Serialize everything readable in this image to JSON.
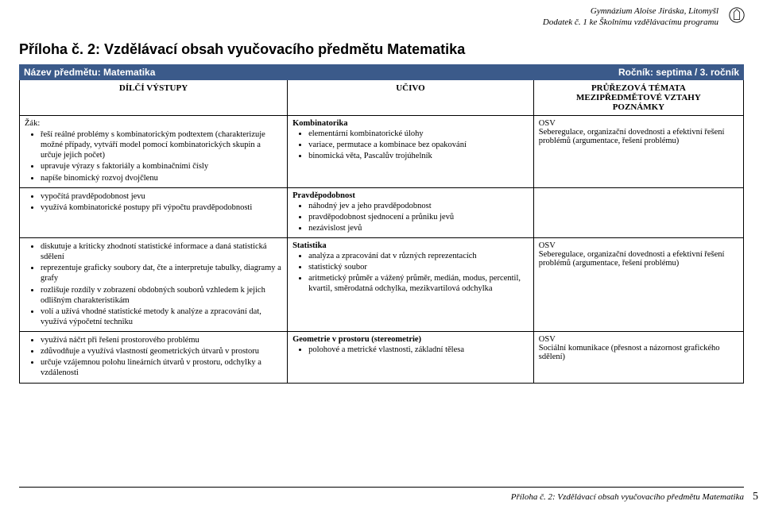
{
  "header": {
    "line1": "Gymnázium Aloise Jiráska, Litomyšl",
    "line2": "Dodatek č. 1 ke Školnímu vzdělávacímu programu"
  },
  "title": "Příloha č. 2: Vzdělávací obsah vyučovacího předmětu Matematika",
  "band": {
    "subject": "Název předmětu: Matematika",
    "grade": "Ročník: septima / 3. ročník"
  },
  "cols": {
    "c1": "DÍLČÍ VÝSTUPY",
    "c2": "UČIVO",
    "c3": "PRŮŘEZOVÁ TÉMATA\nMEZIPŘEDMĚTOVÉ VZTAHY\nPOZNÁMKY"
  },
  "zak": "Žák:",
  "rows": [
    {
      "outputs": [
        "řeší reálné problémy s kombinatorickým podtextem (charakterizuje možné případy, vytváří model pomocí kombinatorických skupin a určuje jejich počet)",
        "upravuje výrazy s faktoriály a kombinačními čísly",
        "napíše binomický rozvoj dvojčlenu"
      ],
      "topic": "Kombinatorika",
      "content": [
        "elementární kombinatorické úlohy",
        "variace, permutace a kombinace bez opakování",
        "binomická věta, Pascalův trojúhelník"
      ],
      "notes_label": "OSV",
      "notes": "Seberegulace, organizační dovednosti a efektivní řešení problémů (argumentace, řešení problému)"
    },
    {
      "outputs": [
        "vypočítá pravděpodobnost jevu",
        "využívá kombinatorické postupy při výpočtu pravděpodobnosti"
      ],
      "topic": "Pravděpodobnost",
      "content": [
        "náhodný jev a jeho pravděpodobnost",
        "pravděpodobnost sjednocení a průniku jevů",
        "nezávislost jevů"
      ],
      "notes_label": "",
      "notes": ""
    },
    {
      "outputs": [
        "diskutuje a kriticky zhodnotí statistické informace a daná statistická sdělení",
        "reprezentuje graficky soubory dat, čte a interpretuje tabulky, diagramy a grafy",
        "rozlišuje rozdíly v zobrazení obdobných souborů vzhledem k jejich odlišným charakteristikám",
        "volí a užívá vhodné statistické metody k analýze a zpracování dat, využívá výpočetní techniku"
      ],
      "topic": "Statistika",
      "content": [
        "analýza a zpracování dat v různých reprezentacích",
        "statistický soubor",
        "aritmetický průměr a vážený průměr, medián, modus, percentil, kvartil, směrodatná odchylka, mezikvartilová odchylka"
      ],
      "notes_label": "OSV",
      "notes": "Seberegulace, organizační dovednosti a efektivní řešení problémů (argumentace, řešení problému)"
    },
    {
      "outputs": [
        "využívá náčrt při řešení prostorového problému",
        "zdůvodňuje a využívá vlastností geometrických útvarů v prostoru",
        "určuje vzájemnou polohu lineárních útvarů v prostoru, odchylky a vzdálenosti"
      ],
      "topic": "Geometrie v prostoru (stereometrie)",
      "content": [
        "polohové a metrické vlastnosti, základní tělesa"
      ],
      "notes_label": "OSV",
      "notes": "Sociální komunikace (přesnost a názornost grafického sdělení)"
    }
  ],
  "footer": "Příloha č. 2: Vzdělávací obsah vyučovacího předmětu Matematika",
  "page": "5"
}
